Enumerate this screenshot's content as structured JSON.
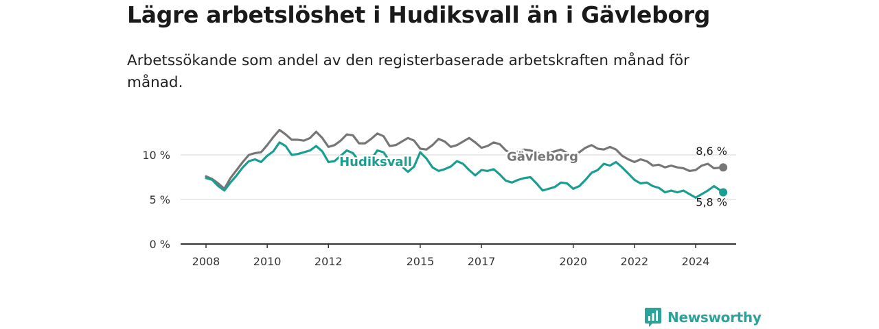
{
  "title": "Lägre arbetslöshet i Hudiksvall än i Gävleborg",
  "subtitle": "Arbetssökande som andel av den registerbaserade arbetskraften månad för månad.",
  "brand": {
    "name": "Newsworthy",
    "icon": "newsworthy-logo-icon",
    "color": "#2ca39a"
  },
  "chart_data": {
    "type": "line",
    "title": "Lägre arbetslöshet i Hudiksvall än i Gävleborg",
    "subtitle": "Arbetssökande som andel av den registerbaserade arbetskraften månad för månad.",
    "xlabel": "",
    "ylabel": "",
    "xlim": [
      2008,
      2025.4
    ],
    "ylim": [
      0,
      13
    ],
    "x_ticks": [
      {
        "value": 2008,
        "label": "2008"
      },
      {
        "value": 2010,
        "label": "2010"
      },
      {
        "value": 2012,
        "label": "2012"
      },
      {
        "value": 2015,
        "label": "2015"
      },
      {
        "value": 2017,
        "label": "2017"
      },
      {
        "value": 2020,
        "label": "2020"
      },
      {
        "value": 2022,
        "label": "2022"
      },
      {
        "value": 2024,
        "label": "2024"
      }
    ],
    "y_ticks": [
      {
        "value": 0,
        "label": "0 %"
      },
      {
        "value": 5,
        "label": "5 %"
      },
      {
        "value": 10,
        "label": "10 %"
      }
    ],
    "grid": "horizontal",
    "series": [
      {
        "name": "Gävleborg",
        "color": "#767676",
        "label_position": "inline",
        "end_label": "8,6 %",
        "points": [
          [
            2008.0,
            7.6
          ],
          [
            2008.2,
            7.3
          ],
          [
            2008.4,
            6.8
          ],
          [
            2008.6,
            6.2
          ],
          [
            2008.8,
            7.4
          ],
          [
            2009.0,
            8.3
          ],
          [
            2009.2,
            9.2
          ],
          [
            2009.4,
            10.0
          ],
          [
            2009.6,
            10.2
          ],
          [
            2009.8,
            10.3
          ],
          [
            2010.0,
            11.1
          ],
          [
            2010.2,
            12.0
          ],
          [
            2010.4,
            12.8
          ],
          [
            2010.6,
            12.3
          ],
          [
            2010.8,
            11.7
          ],
          [
            2011.0,
            11.7
          ],
          [
            2011.2,
            11.6
          ],
          [
            2011.4,
            11.9
          ],
          [
            2011.6,
            12.6
          ],
          [
            2011.8,
            11.9
          ],
          [
            2012.0,
            10.9
          ],
          [
            2012.2,
            11.1
          ],
          [
            2012.4,
            11.6
          ],
          [
            2012.6,
            12.3
          ],
          [
            2012.8,
            12.2
          ],
          [
            2013.0,
            11.3
          ],
          [
            2013.2,
            11.3
          ],
          [
            2013.4,
            11.8
          ],
          [
            2013.6,
            12.4
          ],
          [
            2013.8,
            12.1
          ],
          [
            2014.0,
            11.0
          ],
          [
            2014.2,
            11.1
          ],
          [
            2014.4,
            11.5
          ],
          [
            2014.6,
            11.9
          ],
          [
            2014.8,
            11.6
          ],
          [
            2015.0,
            10.7
          ],
          [
            2015.2,
            10.6
          ],
          [
            2015.4,
            11.1
          ],
          [
            2015.6,
            11.8
          ],
          [
            2015.8,
            11.5
          ],
          [
            2016.0,
            10.9
          ],
          [
            2016.2,
            11.1
          ],
          [
            2016.4,
            11.5
          ],
          [
            2016.6,
            11.9
          ],
          [
            2016.8,
            11.4
          ],
          [
            2017.0,
            10.8
          ],
          [
            2017.2,
            11.0
          ],
          [
            2017.4,
            11.4
          ],
          [
            2017.6,
            11.2
          ],
          [
            2017.8,
            10.5
          ],
          [
            2018.0,
            10.1
          ],
          [
            2018.2,
            10.4
          ],
          [
            2018.4,
            10.6
          ],
          [
            2018.6,
            10.5
          ],
          [
            2018.8,
            10.3
          ],
          [
            2019.0,
            10.0
          ],
          [
            2019.2,
            10.2
          ],
          [
            2019.4,
            10.4
          ],
          [
            2019.6,
            10.6
          ],
          [
            2019.8,
            10.2
          ],
          [
            2020.0,
            10.0
          ],
          [
            2020.2,
            10.3
          ],
          [
            2020.4,
            10.8
          ],
          [
            2020.6,
            11.1
          ],
          [
            2020.8,
            10.7
          ],
          [
            2021.0,
            10.6
          ],
          [
            2021.2,
            10.9
          ],
          [
            2021.4,
            10.6
          ],
          [
            2021.6,
            9.9
          ],
          [
            2021.8,
            9.5
          ],
          [
            2022.0,
            9.2
          ],
          [
            2022.2,
            9.5
          ],
          [
            2022.4,
            9.3
          ],
          [
            2022.6,
            8.8
          ],
          [
            2022.8,
            8.9
          ],
          [
            2023.0,
            8.6
          ],
          [
            2023.2,
            8.8
          ],
          [
            2023.4,
            8.6
          ],
          [
            2023.6,
            8.5
          ],
          [
            2023.8,
            8.2
          ],
          [
            2024.0,
            8.3
          ],
          [
            2024.2,
            8.8
          ],
          [
            2024.4,
            9.0
          ],
          [
            2024.6,
            8.5
          ],
          [
            2024.9,
            8.6
          ]
        ]
      },
      {
        "name": "Hudiksvall",
        "color": "#1a9e91",
        "label_position": "inline",
        "end_label": "5,8 %",
        "points": [
          [
            2008.0,
            7.4
          ],
          [
            2008.2,
            7.2
          ],
          [
            2008.4,
            6.5
          ],
          [
            2008.6,
            6.0
          ],
          [
            2008.8,
            6.9
          ],
          [
            2009.0,
            7.7
          ],
          [
            2009.2,
            8.6
          ],
          [
            2009.4,
            9.3
          ],
          [
            2009.6,
            9.5
          ],
          [
            2009.8,
            9.2
          ],
          [
            2010.0,
            9.9
          ],
          [
            2010.2,
            10.4
          ],
          [
            2010.4,
            11.4
          ],
          [
            2010.6,
            11.0
          ],
          [
            2010.8,
            10.0
          ],
          [
            2011.0,
            10.1
          ],
          [
            2011.2,
            10.3
          ],
          [
            2011.4,
            10.5
          ],
          [
            2011.6,
            11.0
          ],
          [
            2011.8,
            10.4
          ],
          [
            2012.0,
            9.2
          ],
          [
            2012.2,
            9.3
          ],
          [
            2012.4,
            9.9
          ],
          [
            2012.6,
            10.5
          ],
          [
            2012.8,
            10.2
          ],
          [
            2013.0,
            9.3
          ],
          [
            2013.2,
            9.1
          ],
          [
            2013.4,
            9.5
          ],
          [
            2013.6,
            10.5
          ],
          [
            2013.8,
            10.3
          ],
          [
            2014.0,
            9.3
          ],
          [
            2014.2,
            9.2
          ],
          [
            2014.4,
            8.7
          ],
          [
            2014.6,
            8.1
          ],
          [
            2014.8,
            8.7
          ],
          [
            2015.0,
            10.3
          ],
          [
            2015.2,
            9.6
          ],
          [
            2015.4,
            8.6
          ],
          [
            2015.6,
            8.2
          ],
          [
            2015.8,
            8.4
          ],
          [
            2016.0,
            8.7
          ],
          [
            2016.2,
            9.3
          ],
          [
            2016.4,
            9.0
          ],
          [
            2016.6,
            8.3
          ],
          [
            2016.8,
            7.7
          ],
          [
            2017.0,
            8.3
          ],
          [
            2017.2,
            8.2
          ],
          [
            2017.4,
            8.4
          ],
          [
            2017.6,
            7.8
          ],
          [
            2017.8,
            7.1
          ],
          [
            2018.0,
            6.9
          ],
          [
            2018.2,
            7.2
          ],
          [
            2018.4,
            7.4
          ],
          [
            2018.6,
            7.5
          ],
          [
            2018.8,
            6.8
          ],
          [
            2019.0,
            6.0
          ],
          [
            2019.2,
            6.2
          ],
          [
            2019.4,
            6.4
          ],
          [
            2019.6,
            6.9
          ],
          [
            2019.8,
            6.8
          ],
          [
            2020.0,
            6.2
          ],
          [
            2020.2,
            6.5
          ],
          [
            2020.4,
            7.2
          ],
          [
            2020.6,
            8.0
          ],
          [
            2020.8,
            8.3
          ],
          [
            2021.0,
            9.0
          ],
          [
            2021.2,
            8.8
          ],
          [
            2021.4,
            9.2
          ],
          [
            2021.6,
            8.6
          ],
          [
            2021.8,
            7.9
          ],
          [
            2022.0,
            7.2
          ],
          [
            2022.2,
            6.8
          ],
          [
            2022.4,
            6.9
          ],
          [
            2022.6,
            6.5
          ],
          [
            2022.8,
            6.3
          ],
          [
            2023.0,
            5.8
          ],
          [
            2023.2,
            6.0
          ],
          [
            2023.4,
            5.8
          ],
          [
            2023.6,
            6.0
          ],
          [
            2023.8,
            5.6
          ],
          [
            2024.0,
            5.2
          ],
          [
            2024.2,
            5.6
          ],
          [
            2024.4,
            6.0
          ],
          [
            2024.6,
            6.5
          ],
          [
            2024.9,
            5.8
          ]
        ]
      }
    ]
  }
}
